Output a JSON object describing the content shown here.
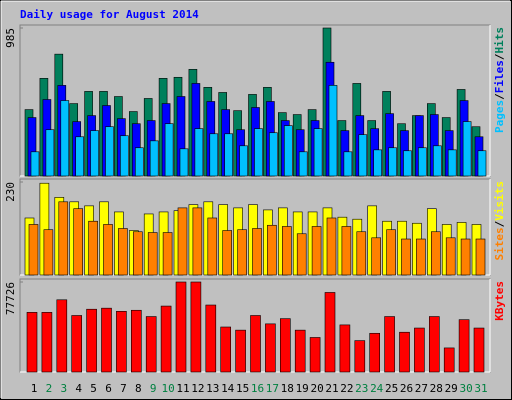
{
  "chart_data": [
    {
      "type": "bar",
      "title": "Daily usage for August 2014",
      "categories": [
        "1",
        "2",
        "3",
        "4",
        "5",
        "6",
        "7",
        "8",
        "9",
        "10",
        "11",
        "12",
        "13",
        "14",
        "15",
        "16",
        "17",
        "18",
        "19",
        "20",
        "21",
        "22",
        "23",
        "24",
        "25",
        "26",
        "27",
        "28",
        "29",
        "30",
        "31"
      ],
      "category_colors": [
        "#000000",
        "#008040",
        "#008040",
        "#000000",
        "#000000",
        "#000000",
        "#000000",
        "#000000",
        "#008040",
        "#008040",
        "#000000",
        "#000000",
        "#000000",
        "#000000",
        "#000000",
        "#008040",
        "#008040",
        "#000000",
        "#000000",
        "#000000",
        "#000000",
        "#000000",
        "#008040",
        "#008040",
        "#000000",
        "#000000",
        "#000000",
        "#000000",
        "#000000",
        "#008040",
        "#008040"
      ],
      "legend_separator": "/",
      "ylim": [
        0,
        985
      ],
      "yticks": [
        985
      ],
      "series": [
        {
          "name": "Hits",
          "color": "#00805c",
          "values": [
            442,
            650,
            811,
            482,
            563,
            563,
            529,
            429,
            516,
            650,
            657,
            710,
            590,
            556,
            435,
            543,
            590,
            422,
            409,
            442,
            985,
            369,
            616,
            369,
            563,
            348,
            402,
            482,
            389,
            576,
            328
          ]
        },
        {
          "name": "Files",
          "color": "#0000ff",
          "values": [
            389,
            509,
            603,
            362,
            402,
            469,
            382,
            348,
            369,
            482,
            529,
            616,
            496,
            442,
            308,
            456,
            496,
            369,
            308,
            369,
            757,
            302,
            402,
            315,
            415,
            302,
            402,
            409,
            302,
            502,
            261
          ]
        },
        {
          "name": "Pages",
          "color": "#00c0ff",
          "values": [
            161,
            308,
            502,
            261,
            302,
            328,
            268,
            188,
            234,
            348,
            181,
            315,
            281,
            281,
            201,
            315,
            288,
            335,
            161,
            315,
            603,
            161,
            275,
            174,
            188,
            168,
            188,
            201,
            174,
            362,
            168
          ]
        }
      ]
    },
    {
      "type": "bar",
      "legend_separator": "/",
      "ylim": [
        0,
        230
      ],
      "yticks": [
        230
      ],
      "series": [
        {
          "name": "Visits",
          "color": "#ffff00",
          "values": [
            141,
            227,
            192,
            181,
            171,
            181,
            156,
            110,
            151,
            156,
            159,
            174,
            181,
            174,
            166,
            174,
            161,
            166,
            156,
            156,
            166,
            143,
            138,
            171,
            133,
            133,
            128,
            164,
            125,
            130,
            125
          ]
        },
        {
          "name": "Sites",
          "color": "#ff8000",
          "values": [
            125,
            112,
            181,
            164,
            133,
            125,
            115,
            107,
            105,
            105,
            166,
            166,
            141,
            110,
            112,
            115,
            123,
            120,
            102,
            120,
            141,
            120,
            107,
            92,
            112,
            89,
            89,
            107,
            92,
            89,
            89
          ]
        }
      ]
    },
    {
      "type": "bar",
      "ylim": [
        0,
        77726
      ],
      "yticks": [
        77726
      ],
      "series": [
        {
          "name": "KBytes",
          "color": "#ff0000",
          "values": [
            51516,
            51516,
            62360,
            48800,
            54220,
            55130,
            52420,
            53320,
            47900,
            56940,
            77726,
            77726,
            57840,
            38860,
            36150,
            48800,
            41570,
            46090,
            36150,
            29820,
            68690,
            40670,
            27110,
            33440,
            47900,
            34350,
            37960,
            47900,
            20790,
            45190,
            37960
          ]
        }
      ]
    }
  ]
}
